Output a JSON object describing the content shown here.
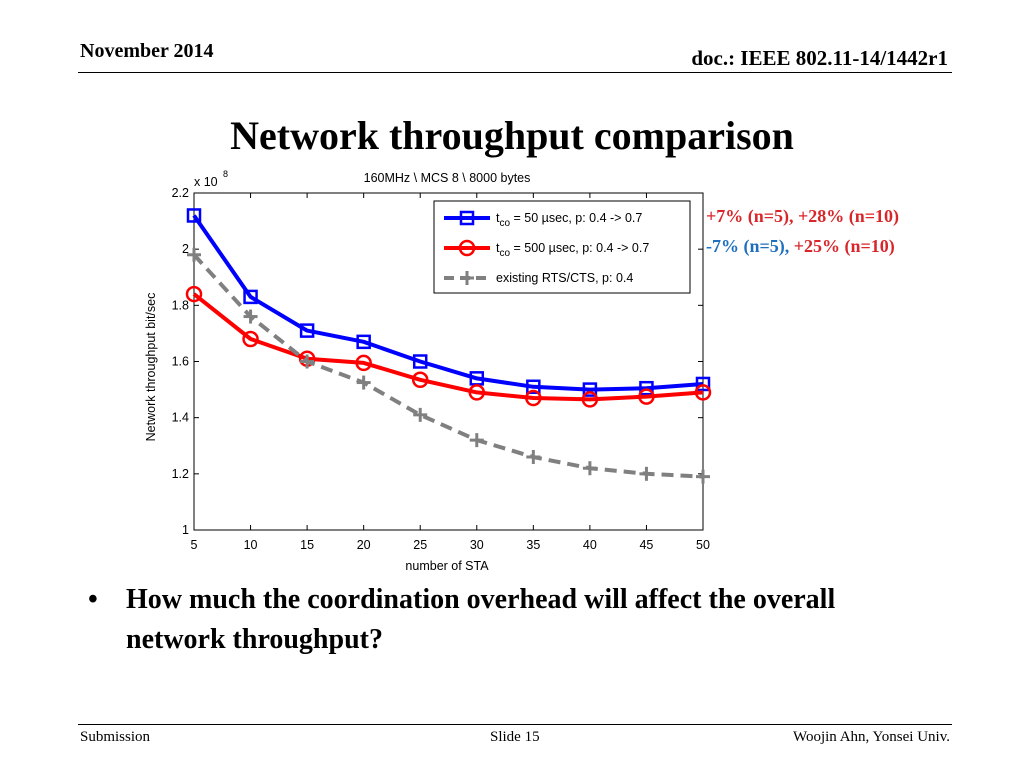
{
  "header": {
    "date": "November 2014",
    "doc": "doc.: IEEE 802.11-14/1442r1"
  },
  "title": "Network throughput comparison",
  "notes": {
    "line1": "+7% (n=5), +28% (n=10)",
    "line2_part1": "-7% (n=5),",
    "line2_part2": "+25% (n=10)",
    "colors": {
      "red": "#d9262b",
      "blue": "#1f6fbf"
    }
  },
  "bullet": {
    "symbol": "•",
    "text": "How much the coordination overhead will affect the overall network throughput?"
  },
  "footer": {
    "left": "Submission",
    "center": "Slide 15",
    "right": "Woojin Ahn, Yonsei Univ."
  },
  "chart_data": {
    "type": "line",
    "title": "160MHz \\ MCS 8 \\ 8000 bytes",
    "xlabel": "number of STA",
    "ylabel": "Network throughput bit/sec",
    "y_multiplier": "x 10",
    "y_multiplier_exp": "8",
    "xlim": [
      5,
      50
    ],
    "ylim": [
      1.0,
      2.2
    ],
    "x": [
      5,
      10,
      15,
      20,
      25,
      30,
      35,
      40,
      45,
      50
    ],
    "x_ticks": [
      "5",
      "10",
      "15",
      "20",
      "25",
      "30",
      "35",
      "40",
      "45",
      "50"
    ],
    "y_ticks": [
      "1",
      "1.2",
      "1.4",
      "1.6",
      "1.8",
      "2",
      "2.2"
    ],
    "y_tick_values": [
      1.0,
      1.2,
      1.4,
      1.6,
      1.8,
      2.0,
      2.2
    ],
    "grid": false,
    "legend_position": "top-right",
    "series": [
      {
        "label_sub": "co",
        "label_rest": " = 50 µsec, p: 0.4 -> 0.7",
        "label_t": "t",
        "color": "#0000ff",
        "marker": "square",
        "dash": false,
        "values": [
          2.12,
          1.83,
          1.71,
          1.67,
          1.6,
          1.54,
          1.51,
          1.5,
          1.505,
          1.52
        ]
      },
      {
        "label_sub": "co",
        "label_rest": " = 500 µsec, p: 0.4 -> 0.7",
        "label_t": "t",
        "color": "#ff0000",
        "marker": "circle",
        "dash": false,
        "values": [
          1.84,
          1.68,
          1.61,
          1.595,
          1.535,
          1.49,
          1.47,
          1.465,
          1.475,
          1.49
        ]
      },
      {
        "label_plain": "existing RTS/CTS, p: 0.4",
        "color": "#808080",
        "marker": "plus",
        "dash": true,
        "values": [
          1.98,
          1.76,
          1.6,
          1.525,
          1.41,
          1.32,
          1.26,
          1.22,
          1.2,
          1.19
        ]
      }
    ]
  }
}
